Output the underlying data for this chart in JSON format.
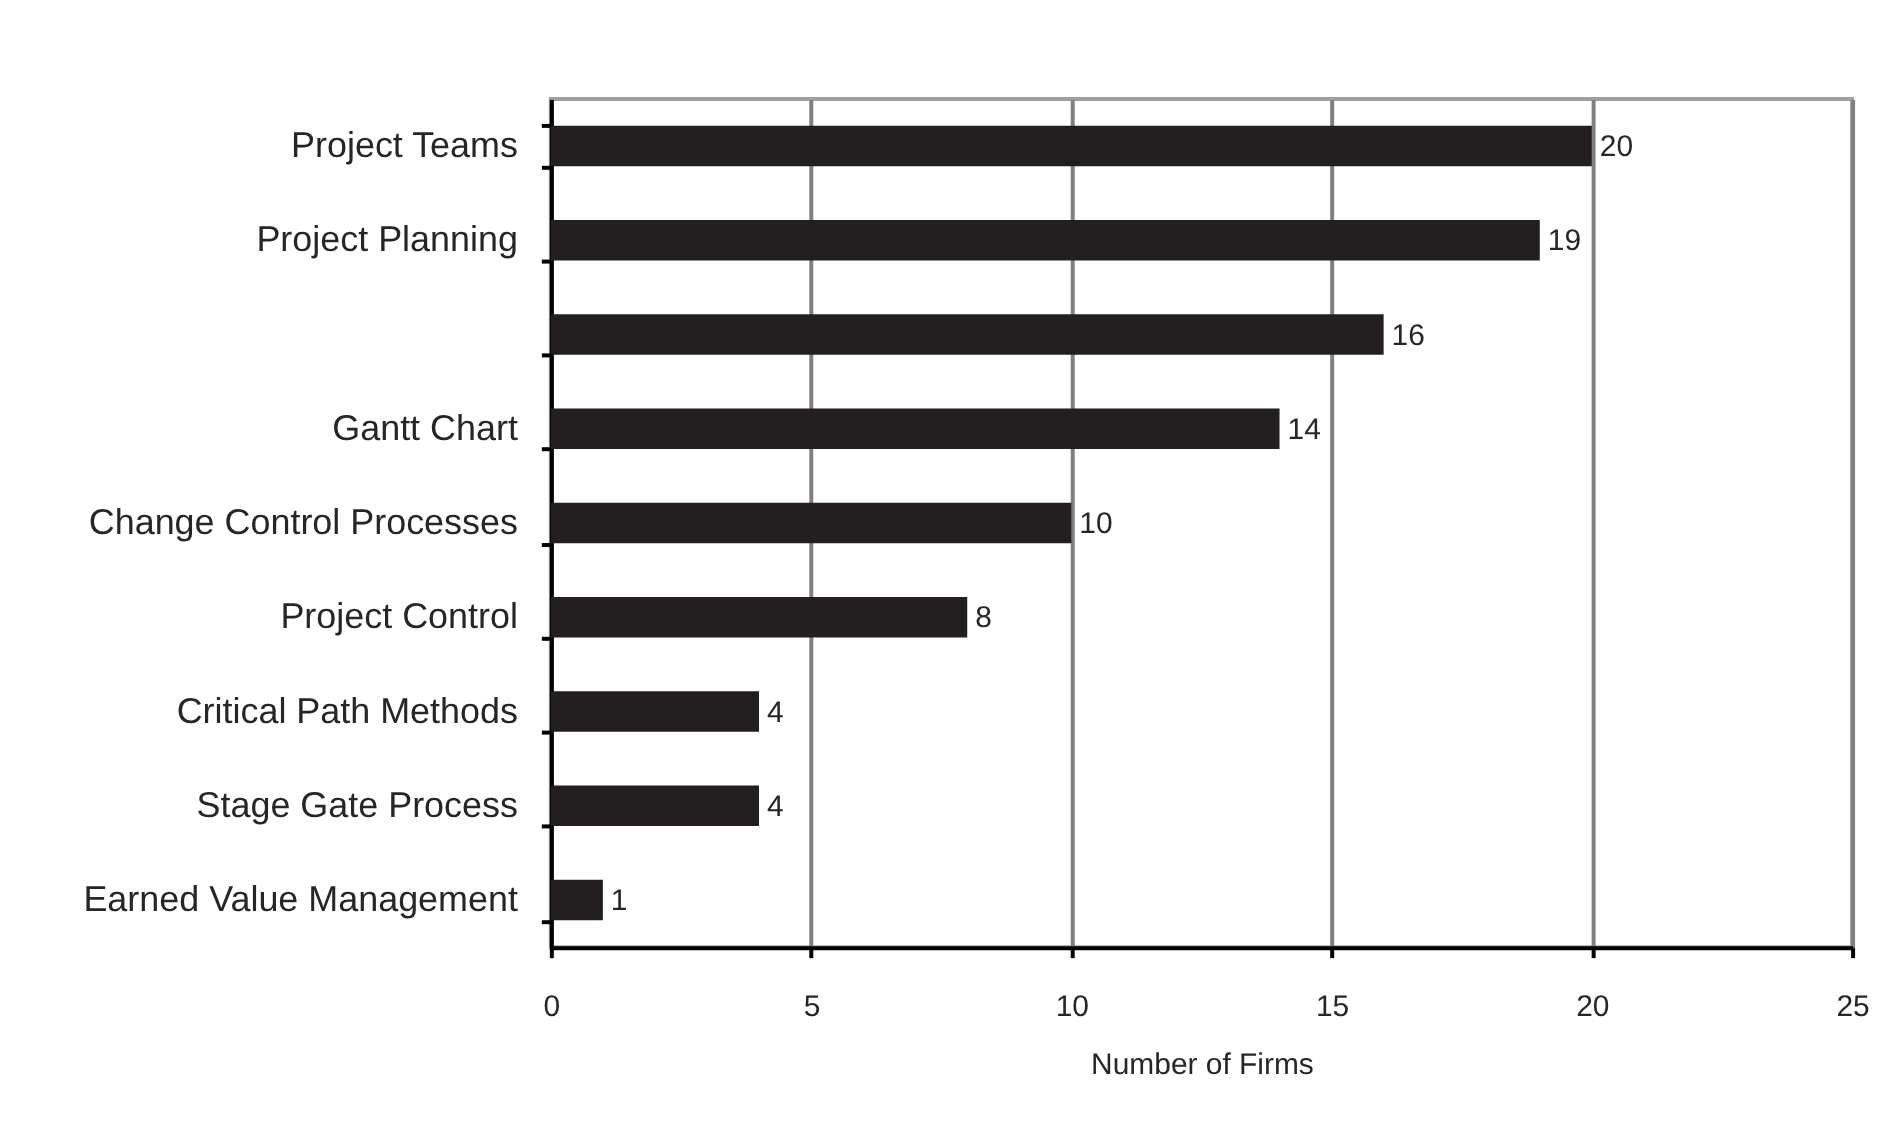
{
  "chart_data": {
    "type": "bar",
    "orientation": "horizontal",
    "categories": [
      "Project Teams",
      "Project Planning",
      null,
      "Gantt Chart",
      "Change Control Processes",
      "Project Control",
      "Critical Path Methods",
      "Stage Gate Process",
      "Earned Value Management"
    ],
    "values": [
      20,
      19,
      16,
      14,
      10,
      8,
      4,
      4,
      1
    ],
    "color": "#231f20",
    "xlabel": "Number of Firms",
    "xlim": [
      0,
      25
    ],
    "xticks": [
      0,
      5,
      10,
      15,
      20,
      25
    ],
    "grid": "x",
    "data_labels": true
  }
}
